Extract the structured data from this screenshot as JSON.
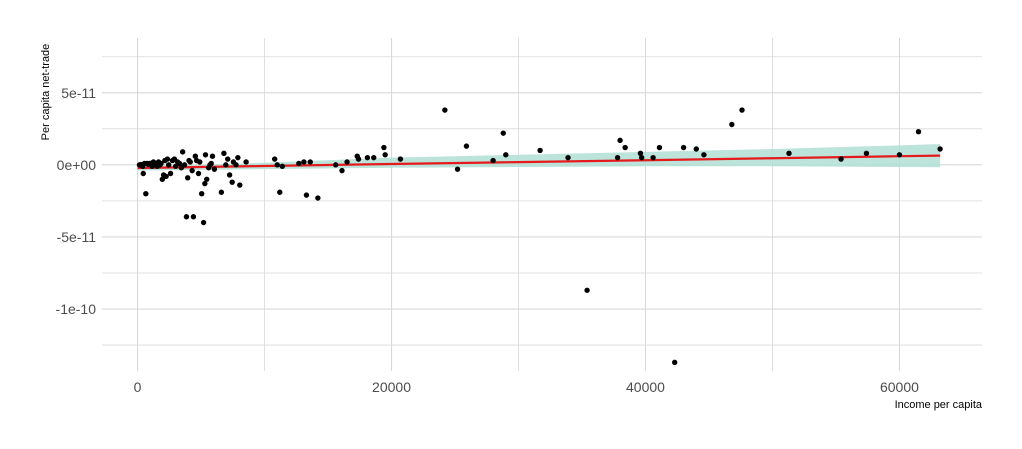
{
  "chart_data": {
    "type": "scatter",
    "xlabel": "Income per capita",
    "ylabel": "Per capita net-trade",
    "xlim": [
      -2800,
      66500
    ],
    "ylim": [
      -1.43e-10,
      8.8e-11
    ],
    "x_ticks": [
      0,
      20000,
      40000,
      60000
    ],
    "x_tick_labels": [
      "0",
      "20000",
      "40000",
      "60000"
    ],
    "x_minor_ticks": [
      10000,
      30000,
      50000
    ],
    "y_ticks": [
      5e-11,
      0,
      -5e-11,
      -1e-10
    ],
    "y_tick_labels": [
      "5e-11",
      "0e+00",
      "-5e-11",
      "-1e-10"
    ],
    "y_minor_ticks": [
      7.5e-11,
      2.5e-11,
      -2.5e-11,
      -7.5e-11,
      -1.25e-10
    ],
    "grid": true,
    "colors": {
      "points": "#000000",
      "fit_line": "#e41a1c",
      "confidence_band": "#b2dfd4",
      "grid": "#d9d9d9"
    },
    "points": [
      {
        "x": 150,
        "y": 0
      },
      {
        "x": 300,
        "y": 2e-13
      },
      {
        "x": 400,
        "y": -1e-12
      },
      {
        "x": 450,
        "y": -6e-12
      },
      {
        "x": 550,
        "y": 1e-12
      },
      {
        "x": 650,
        "y": -2e-11
      },
      {
        "x": 750,
        "y": 1e-12
      },
      {
        "x": 850,
        "y": 3e-13
      },
      {
        "x": 950,
        "y": 1e-12
      },
      {
        "x": 1050,
        "y": 1e-12
      },
      {
        "x": 1150,
        "y": -1e-12
      },
      {
        "x": 1250,
        "y": 2e-12
      },
      {
        "x": 1350,
        "y": 1e-12
      },
      {
        "x": 1450,
        "y": 0
      },
      {
        "x": 1550,
        "y": -1e-12
      },
      {
        "x": 1650,
        "y": 2e-12
      },
      {
        "x": 1750,
        "y": 0
      },
      {
        "x": 1850,
        "y": 1e-12
      },
      {
        "x": 1950,
        "y": -1e-11
      },
      {
        "x": 2050,
        "y": -7e-12
      },
      {
        "x": 2150,
        "y": 3e-12
      },
      {
        "x": 2250,
        "y": -8e-12
      },
      {
        "x": 2350,
        "y": 4e-12
      },
      {
        "x": 2450,
        "y": 0
      },
      {
        "x": 2600,
        "y": -6e-12
      },
      {
        "x": 2750,
        "y": 3e-12
      },
      {
        "x": 2900,
        "y": 4e-12
      },
      {
        "x": 3000,
        "y": -1e-12
      },
      {
        "x": 3150,
        "y": 2e-12
      },
      {
        "x": 3300,
        "y": 1e-12
      },
      {
        "x": 3450,
        "y": -2e-12
      },
      {
        "x": 3550,
        "y": 9e-12
      },
      {
        "x": 3700,
        "y": 0
      },
      {
        "x": 3850,
        "y": -3.6e-11
      },
      {
        "x": 3950,
        "y": -9e-12
      },
      {
        "x": 4050,
        "y": 3e-12
      },
      {
        "x": 4150,
        "y": 2e-12
      },
      {
        "x": 4300,
        "y": -4e-12
      },
      {
        "x": 4400,
        "y": -3.6e-11
      },
      {
        "x": 4550,
        "y": 6e-12
      },
      {
        "x": 4650,
        "y": 3e-12
      },
      {
        "x": 4800,
        "y": -6e-12
      },
      {
        "x": 4900,
        "y": 2e-12
      },
      {
        "x": 5050,
        "y": -2e-11
      },
      {
        "x": 5200,
        "y": -4e-11
      },
      {
        "x": 5300,
        "y": -1.3e-11
      },
      {
        "x": 5350,
        "y": 7e-12
      },
      {
        "x": 5450,
        "y": -1e-11
      },
      {
        "x": 5600,
        "y": -2e-12
      },
      {
        "x": 5700,
        "y": 0
      },
      {
        "x": 5800,
        "y": 1e-12
      },
      {
        "x": 5900,
        "y": 6e-12
      },
      {
        "x": 6050,
        "y": -3e-12
      },
      {
        "x": 6600,
        "y": -1.9e-11
      },
      {
        "x": 6800,
        "y": 8e-12
      },
      {
        "x": 6950,
        "y": 0
      },
      {
        "x": 7100,
        "y": 4e-12
      },
      {
        "x": 7250,
        "y": -7e-12
      },
      {
        "x": 7450,
        "y": -1.2e-11
      },
      {
        "x": 7550,
        "y": 2e-12
      },
      {
        "x": 7750,
        "y": 0
      },
      {
        "x": 7900,
        "y": 5e-12
      },
      {
        "x": 8050,
        "y": -1.4e-11
      },
      {
        "x": 8550,
        "y": 2e-12
      },
      {
        "x": 10800,
        "y": 4e-12
      },
      {
        "x": 11000,
        "y": 0
      },
      {
        "x": 11200,
        "y": -1.9e-11
      },
      {
        "x": 11400,
        "y": -1e-12
      },
      {
        "x": 12700,
        "y": 1e-12
      },
      {
        "x": 13100,
        "y": 2e-12
      },
      {
        "x": 13300,
        "y": -2.1e-11
      },
      {
        "x": 13600,
        "y": 2e-12
      },
      {
        "x": 14200,
        "y": -2.3e-11
      },
      {
        "x": 15600,
        "y": 0
      },
      {
        "x": 16100,
        "y": -4e-12
      },
      {
        "x": 16500,
        "y": 2e-12
      },
      {
        "x": 17300,
        "y": 6e-12
      },
      {
        "x": 17400,
        "y": 4e-12
      },
      {
        "x": 18100,
        "y": 5e-12
      },
      {
        "x": 18600,
        "y": 5e-12
      },
      {
        "x": 19400,
        "y": 1.2e-11
      },
      {
        "x": 19500,
        "y": 7e-12
      },
      {
        "x": 20700,
        "y": 4e-12
      },
      {
        "x": 24200,
        "y": 3.8e-11
      },
      {
        "x": 25200,
        "y": -3e-12
      },
      {
        "x": 25900,
        "y": 1.3e-11
      },
      {
        "x": 28000,
        "y": 3e-12
      },
      {
        "x": 28800,
        "y": 2.2e-11
      },
      {
        "x": 29000,
        "y": 7e-12
      },
      {
        "x": 31700,
        "y": 1e-11
      },
      {
        "x": 33900,
        "y": 5e-12
      },
      {
        "x": 35400,
        "y": -8.7e-11
      },
      {
        "x": 37800,
        "y": 5e-12
      },
      {
        "x": 38000,
        "y": 1.7e-11
      },
      {
        "x": 38400,
        "y": 1.2e-11
      },
      {
        "x": 39600,
        "y": 8e-12
      },
      {
        "x": 39700,
        "y": 5e-12
      },
      {
        "x": 40600,
        "y": 5e-12
      },
      {
        "x": 41100,
        "y": 1.2e-11
      },
      {
        "x": 42300,
        "y": -1.37e-10
      },
      {
        "x": 43000,
        "y": 1.2e-11
      },
      {
        "x": 44000,
        "y": 1.1e-11
      },
      {
        "x": 44600,
        "y": 7e-12
      },
      {
        "x": 46800,
        "y": 2.8e-11
      },
      {
        "x": 47600,
        "y": 3.8e-11
      },
      {
        "x": 51300,
        "y": 8e-12
      },
      {
        "x": 55400,
        "y": 4e-12
      },
      {
        "x": 57400,
        "y": 8e-12
      },
      {
        "x": 60000,
        "y": 7e-12
      },
      {
        "x": 61500,
        "y": 2.3e-11
      },
      {
        "x": 63200,
        "y": 1.1e-11
      }
    ],
    "fit_line": {
      "x": [
        0,
        10000,
        20000,
        30000,
        40000,
        50000,
        60000,
        63200
      ],
      "y": [
        -2.2e-12,
        -8e-13,
        6e-13,
        1.9e-12,
        3.2e-12,
        4.6e-12,
        6e-12,
        6.4e-12
      ]
    },
    "confidence_band": {
      "x": [
        0,
        5000,
        10000,
        20000,
        30000,
        40000,
        50000,
        60000,
        63200
      ],
      "upper": [
        0,
        0,
        1.5e-12,
        5e-12,
        7e-12,
        9e-12,
        1.1e-11,
        1.35e-11,
        1.45e-11
      ],
      "lower": [
        -4e-12,
        -3.5e-12,
        -3e-12,
        -2e-12,
        -1.5e-12,
        -1e-12,
        -1e-12,
        -1.5e-12,
        -1.7e-12
      ]
    }
  }
}
